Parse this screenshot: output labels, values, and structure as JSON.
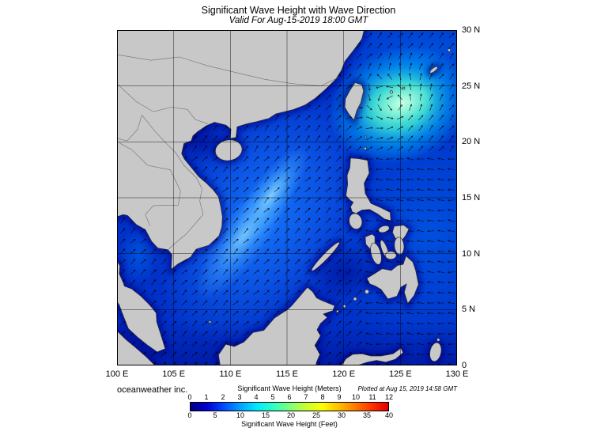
{
  "header": {
    "title": "Significant Wave Height with Wave Direction",
    "subtitle": "Valid For Aug-15-2019 18:00 GMT"
  },
  "map": {
    "x_axis_labels": [
      "100 E",
      "105 E",
      "110 E",
      "115 E",
      "120 E",
      "125 E",
      "130 E"
    ],
    "y_axis_labels": [
      "30 N",
      "25 N",
      "20 N",
      "15 N",
      "10 N",
      "5 N",
      "0"
    ],
    "colors": {
      "land": "#c8c8c8",
      "coastline": "#2a2a2a",
      "ocean_base": "#0031c8",
      "ocean_mid": "#1e7dff",
      "streak": "#87d7ff",
      "high_patch": "#8cffd2",
      "coastal_shallow": "#000087",
      "arrow": "#000000",
      "grid": "#000000"
    }
  },
  "footer": {
    "credit": "oceanweather inc.",
    "plotted_note": "Plotted at Aug 15, 2019 14:58 GMT"
  },
  "legend": {
    "meters_label": "Significant Wave Height (Meters)",
    "feet_label": "Significant Wave Height (Feet)",
    "meters_ticks": [
      0,
      1,
      2,
      3,
      4,
      5,
      6,
      7,
      8,
      9,
      10,
      11,
      12
    ],
    "feet_ticks": [
      0,
      5,
      10,
      15,
      20,
      25,
      30,
      35,
      40
    ],
    "max_meters": 12,
    "gradient": [
      "#000082",
      "#0000d2",
      "#0048ff",
      "#00a0ff",
      "#00e8ff",
      "#2effc4",
      "#7dff7d",
      "#c8ff32",
      "#ffff00",
      "#ffbe00",
      "#ff7800",
      "#ff3200",
      "#dc0000"
    ]
  }
}
